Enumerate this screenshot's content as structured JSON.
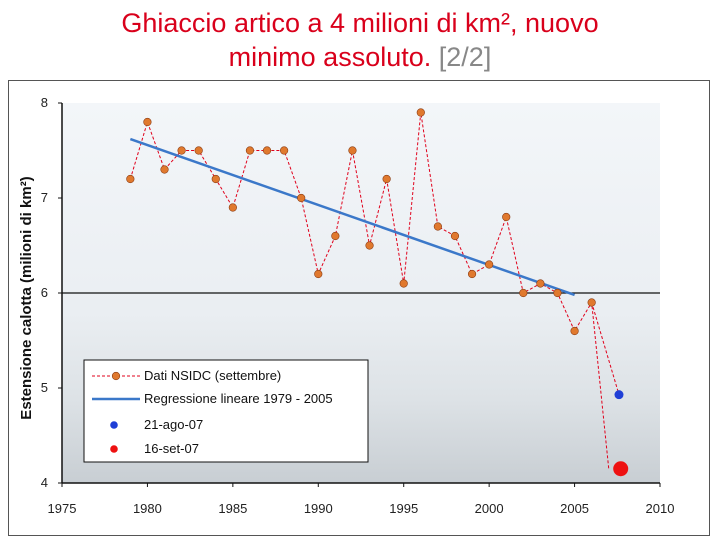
{
  "slide": {
    "title_line1": "Ghiaccio artico a 4 milioni di km², nuovo",
    "title_line2": "minimo assoluto.",
    "page_indicator": "[2/2]"
  },
  "colors": {
    "title": "#d9001b",
    "points": "#e0792e",
    "dashed_line": "#e0001b",
    "regression": "#3b78c9",
    "aug_point": "#1f3fd6",
    "sep_point": "#ee1111"
  },
  "chart_data": {
    "type": "line",
    "ylabel": "Estensione calotta (milioni di km²)",
    "xlabel": "",
    "xlim": [
      1975,
      2010
    ],
    "ylim": [
      4,
      8
    ],
    "x_ticks": [
      "1975",
      "1980",
      "1985",
      "1990",
      "1995",
      "2000",
      "2005",
      "2010"
    ],
    "y_ticks": [
      "4",
      "5",
      "6",
      "7",
      "8"
    ],
    "grid_lines_y": [
      6
    ],
    "legend_position": "bottom-left",
    "series": [
      {
        "name": "Dati NSIDC (settembre)",
        "style": "dashed-markers",
        "x": [
          1979,
          1980,
          1981,
          1982,
          1983,
          1984,
          1985,
          1986,
          1987,
          1988,
          1989,
          1990,
          1991,
          1992,
          1993,
          1994,
          1995,
          1996,
          1997,
          1998,
          1999,
          2000,
          2001,
          2002,
          2003,
          2004,
          2005,
          2006,
          2007
        ],
        "y": [
          7.2,
          7.8,
          7.3,
          7.5,
          7.5,
          7.2,
          6.9,
          7.5,
          7.5,
          7.5,
          7.0,
          6.2,
          6.6,
          7.5,
          6.5,
          7.2,
          6.1,
          7.9,
          6.7,
          6.6,
          6.2,
          6.3,
          6.8,
          6.0,
          6.1,
          6.0,
          5.6,
          5.9,
          4.15
        ]
      },
      {
        "name": "Regressione lineare 1979 - 2005",
        "style": "solid",
        "x": [
          1979,
          2005
        ],
        "y": [
          7.62,
          5.98
        ]
      },
      {
        "name": "21-ago-07",
        "style": "marker",
        "x": [
          2007.6
        ],
        "y": [
          4.93
        ]
      },
      {
        "name": "16-set-07",
        "style": "marker-large",
        "x": [
          2007.7
        ],
        "y": [
          4.15
        ]
      }
    ]
  }
}
